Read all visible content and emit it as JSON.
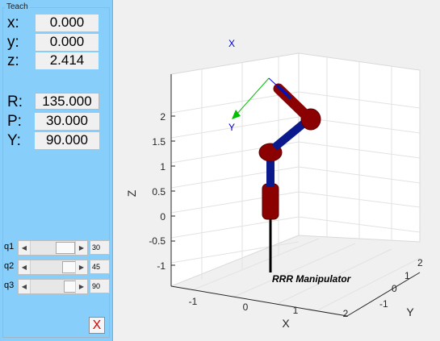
{
  "teach_panel": {
    "title": "Teach",
    "position": [
      {
        "label": "x:",
        "value": "0.000"
      },
      {
        "label": "y:",
        "value": "0.000"
      },
      {
        "label": "z:",
        "value": "2.414"
      }
    ],
    "orientation": [
      {
        "label": "R:",
        "value": "135.000"
      },
      {
        "label": "P:",
        "value": "30.000"
      },
      {
        "label": "Y:",
        "value": "90.000"
      }
    ],
    "joints": [
      {
        "label": "q1",
        "value": "30"
      },
      {
        "label": "q2",
        "value": "45"
      },
      {
        "label": "q3",
        "value": "90"
      }
    ],
    "close_label": "X"
  },
  "plot": {
    "z_ticks": [
      "2",
      "1.5",
      "1",
      "0.5",
      "0",
      "-0.5",
      "-1"
    ],
    "x_ticks": [
      "-1",
      "0",
      "1",
      "2"
    ],
    "y_ticks": [
      "-1",
      "0",
      "1",
      "2"
    ],
    "xlabel": "X",
    "ylabel": "Y",
    "zlabel": "Z",
    "robot_name": "RRR Manipulator",
    "frame_label_x": "X",
    "frame_label_y": "Y",
    "link_color": "#0a1a8c",
    "joint_color": "#8b0000",
    "axis_x_color": "#0000ff",
    "axis_y_color": "#00c000"
  }
}
